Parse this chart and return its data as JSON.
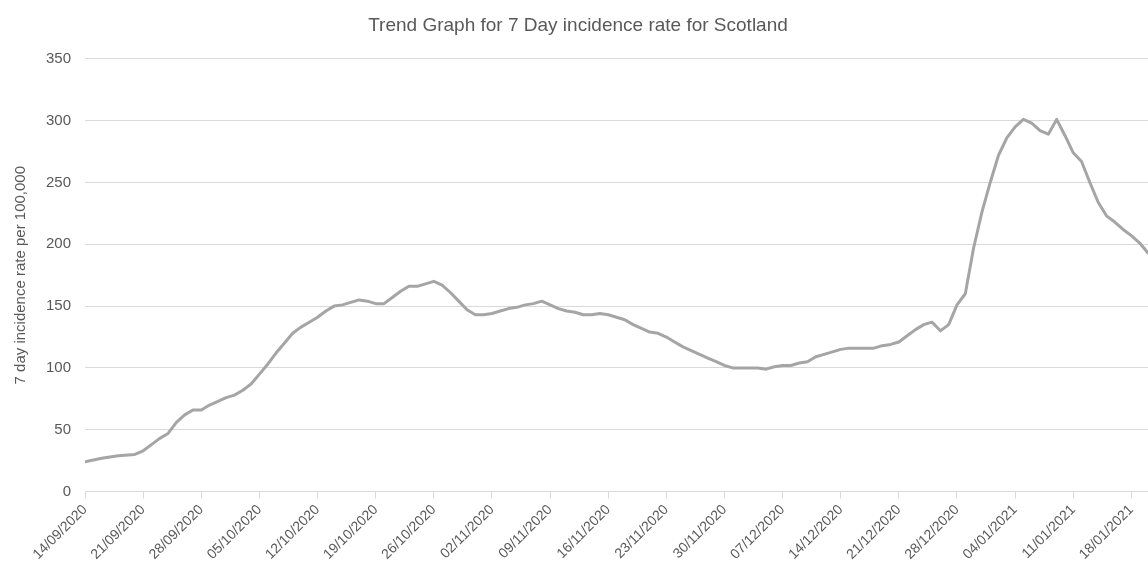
{
  "chart_data": {
    "type": "line",
    "title": "Trend Graph for 7 Day incidence rate for Scotland",
    "ylabel": "7 day incidence rate per 100,000",
    "x": [
      "2020-09-14",
      "2020-09-16",
      "2020-09-18",
      "2020-09-20",
      "2020-09-21",
      "2020-09-22",
      "2020-09-23",
      "2020-09-24",
      "2020-09-25",
      "2020-09-26",
      "2020-09-27",
      "2020-09-28",
      "2020-09-29",
      "2020-09-30",
      "2020-10-01",
      "2020-10-02",
      "2020-10-03",
      "2020-10-04",
      "2020-10-05",
      "2020-10-06",
      "2020-10-07",
      "2020-10-08",
      "2020-10-09",
      "2020-10-10",
      "2020-10-11",
      "2020-10-12",
      "2020-10-13",
      "2020-10-14",
      "2020-10-15",
      "2020-10-16",
      "2020-10-17",
      "2020-10-18",
      "2020-10-19",
      "2020-10-20",
      "2020-10-21",
      "2020-10-22",
      "2020-10-23",
      "2020-10-24",
      "2020-10-25",
      "2020-10-26",
      "2020-10-27",
      "2020-10-28",
      "2020-10-29",
      "2020-10-30",
      "2020-10-31",
      "2020-11-01",
      "2020-11-02",
      "2020-11-03",
      "2020-11-04",
      "2020-11-05",
      "2020-11-06",
      "2020-11-07",
      "2020-11-08",
      "2020-11-09",
      "2020-11-10",
      "2020-11-11",
      "2020-11-12",
      "2020-11-13",
      "2020-11-14",
      "2020-11-15",
      "2020-11-16",
      "2020-11-17",
      "2020-11-18",
      "2020-11-19",
      "2020-11-20",
      "2020-11-21",
      "2020-11-22",
      "2020-11-23",
      "2020-11-24",
      "2020-11-25",
      "2020-11-26",
      "2020-11-27",
      "2020-11-28",
      "2020-11-29",
      "2020-11-30",
      "2020-12-01",
      "2020-12-02",
      "2020-12-03",
      "2020-12-04",
      "2020-12-05",
      "2020-12-06",
      "2020-12-07",
      "2020-12-08",
      "2020-12-09",
      "2020-12-10",
      "2020-12-11",
      "2020-12-12",
      "2020-12-13",
      "2020-12-14",
      "2020-12-15",
      "2020-12-16",
      "2020-12-17",
      "2020-12-18",
      "2020-12-19",
      "2020-12-20",
      "2020-12-21",
      "2020-12-22",
      "2020-12-23",
      "2020-12-24",
      "2020-12-25",
      "2020-12-26",
      "2020-12-27",
      "2020-12-28",
      "2020-12-29",
      "2020-12-30",
      "2020-12-31",
      "2021-01-01",
      "2021-01-02",
      "2021-01-03",
      "2021-01-04",
      "2021-01-05",
      "2021-01-06",
      "2021-01-07",
      "2021-01-08",
      "2021-01-09",
      "2021-01-10",
      "2021-01-11",
      "2021-01-12",
      "2021-01-13",
      "2021-01-14",
      "2021-01-15",
      "2021-01-16",
      "2021-01-17",
      "2021-01-18",
      "2021-01-19",
      "2021-01-20"
    ],
    "series": [
      {
        "color": "#a5a5a5",
        "values": [
          24,
          27,
          29,
          30,
          33,
          38,
          43,
          47,
          56,
          62,
          66,
          66,
          70,
          73,
          76,
          78,
          82,
          87,
          95,
          103,
          112,
          120,
          128,
          133,
          137,
          141,
          146,
          150,
          151,
          153,
          155,
          154,
          152,
          152,
          157,
          162,
          166,
          166,
          168,
          170,
          167,
          161,
          154,
          147,
          143,
          143,
          144,
          146,
          148,
          149,
          151,
          152,
          154,
          151,
          148,
          146,
          145,
          143,
          143,
          144,
          143,
          141,
          139,
          135,
          132,
          129,
          128,
          125,
          121,
          117,
          114,
          111,
          108,
          105,
          102,
          100,
          100,
          100,
          100,
          99,
          101,
          102,
          102,
          104,
          105,
          109,
          111,
          113,
          115,
          116,
          116,
          116,
          116,
          118,
          119,
          121,
          126,
          131,
          135,
          137,
          130,
          135,
          151,
          160,
          197,
          226,
          250,
          272,
          286,
          295,
          301,
          298,
          292,
          289,
          301,
          288,
          274,
          267,
          250,
          234,
          223,
          218,
          212,
          207,
          201,
          193
        ]
      }
    ],
    "xlim": [
      "2020-09-14",
      "2021-01-20"
    ],
    "xticks": [
      {
        "value": "2020-09-14",
        "label": "14/09/2020"
      },
      {
        "value": "2020-09-21",
        "label": "21/09/2020"
      },
      {
        "value": "2020-09-28",
        "label": "28/09/2020"
      },
      {
        "value": "2020-10-05",
        "label": "05/10/2020"
      },
      {
        "value": "2020-10-12",
        "label": "12/10/2020"
      },
      {
        "value": "2020-10-19",
        "label": "19/10/2020"
      },
      {
        "value": "2020-10-26",
        "label": "26/10/2020"
      },
      {
        "value": "2020-11-02",
        "label": "02/11/2020"
      },
      {
        "value": "2020-11-09",
        "label": "09/11/2020"
      },
      {
        "value": "2020-11-16",
        "label": "16/11/2020"
      },
      {
        "value": "2020-11-23",
        "label": "23/11/2020"
      },
      {
        "value": "2020-11-30",
        "label": "30/11/2020"
      },
      {
        "value": "2020-12-07",
        "label": "07/12/2020"
      },
      {
        "value": "2020-12-14",
        "label": "14/12/2020"
      },
      {
        "value": "2020-12-21",
        "label": "21/12/2020"
      },
      {
        "value": "2020-12-28",
        "label": "28/12/2020"
      },
      {
        "value": "2021-01-04",
        "label": "04/01/2021"
      },
      {
        "value": "2021-01-11",
        "label": "11/01/2021"
      },
      {
        "value": "2021-01-18",
        "label": "18/01/2021"
      }
    ],
    "ylim": [
      0,
      350
    ],
    "yticks": [
      0,
      50,
      100,
      150,
      200,
      250,
      300,
      350
    ],
    "grid": "y",
    "legend": false,
    "marker": "none",
    "line_style": "solid"
  }
}
